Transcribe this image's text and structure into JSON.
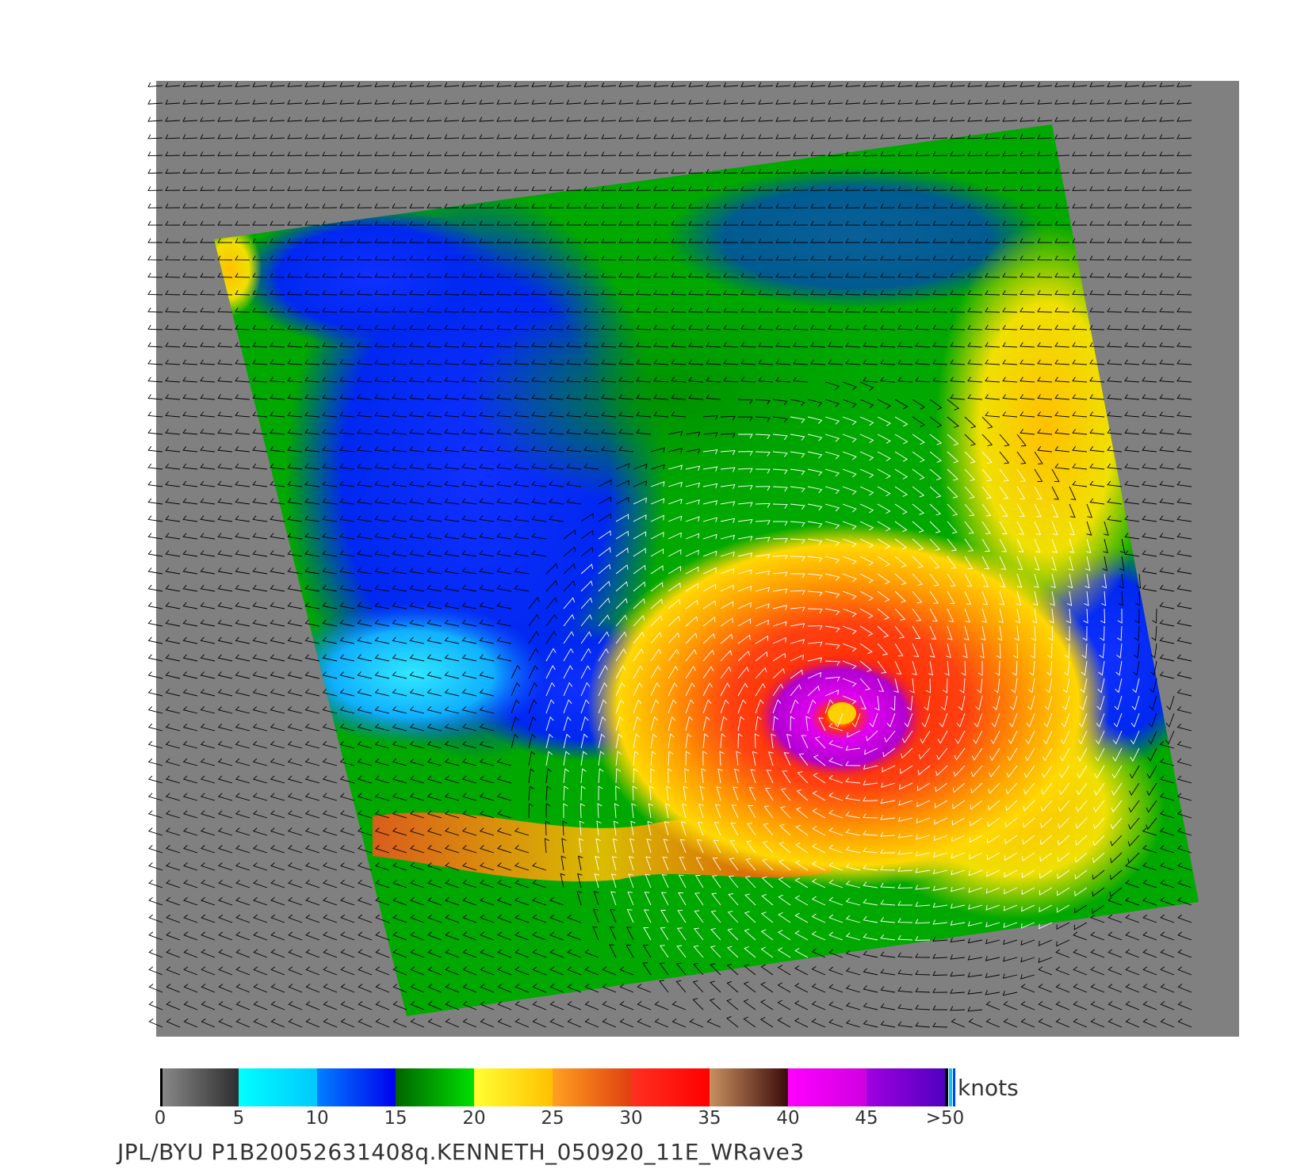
{
  "colorbar": {
    "units": "knots",
    "stops": [
      {
        "label": "0",
        "value": 0
      },
      {
        "label": "5",
        "value": 5
      },
      {
        "label": "10",
        "value": 10
      },
      {
        "label": "15",
        "value": 15
      },
      {
        "label": "20",
        "value": 20
      },
      {
        "label": "25",
        "value": 25
      },
      {
        "label": "30",
        "value": 30
      },
      {
        "label": "35",
        "value": 35
      },
      {
        "label": "40",
        "value": 40
      },
      {
        "label": "45",
        "value": 45
      },
      {
        "label": ">50",
        "value": 50
      }
    ],
    "segments": [
      {
        "from": 0,
        "to": 5,
        "colors": [
          "#8a8a8a",
          "#2e2e2e"
        ]
      },
      {
        "from": 5,
        "to": 10,
        "colors": [
          "#00ffff",
          "#00c8ff"
        ]
      },
      {
        "from": 10,
        "to": 15,
        "colors": [
          "#0080ff",
          "#0000ee"
        ]
      },
      {
        "from": 15,
        "to": 20,
        "colors": [
          "#006400",
          "#00e000"
        ]
      },
      {
        "from": 20,
        "to": 25,
        "colors": [
          "#ffff33",
          "#ffc000"
        ]
      },
      {
        "from": 25,
        "to": 30,
        "colors": [
          "#ffa020",
          "#e04010"
        ]
      },
      {
        "from": 30,
        "to": 35,
        "colors": [
          "#ff3020",
          "#ff0000"
        ]
      },
      {
        "from": 35,
        "to": 40,
        "colors": [
          "#c89060",
          "#3a0a0a"
        ]
      },
      {
        "from": 40,
        "to": 45,
        "colors": [
          "#ff00ff",
          "#d000e0"
        ]
      },
      {
        "from": 45,
        "to": 50,
        "colors": [
          "#a000e0",
          "#5000c0"
        ]
      }
    ]
  },
  "caption": "JPL/BYU  P1B20052631408q.KENNETH_050920_11E_WRave3",
  "colors": {
    "land_mask": "#808080",
    "calm": "#0000ff",
    "light": "#00b000",
    "moderate": "#ffc800",
    "strong": "#ff2000",
    "storm_core": "#e000f0",
    "barb_default": "#000000",
    "barb_high_wind": "#ffffff"
  }
}
